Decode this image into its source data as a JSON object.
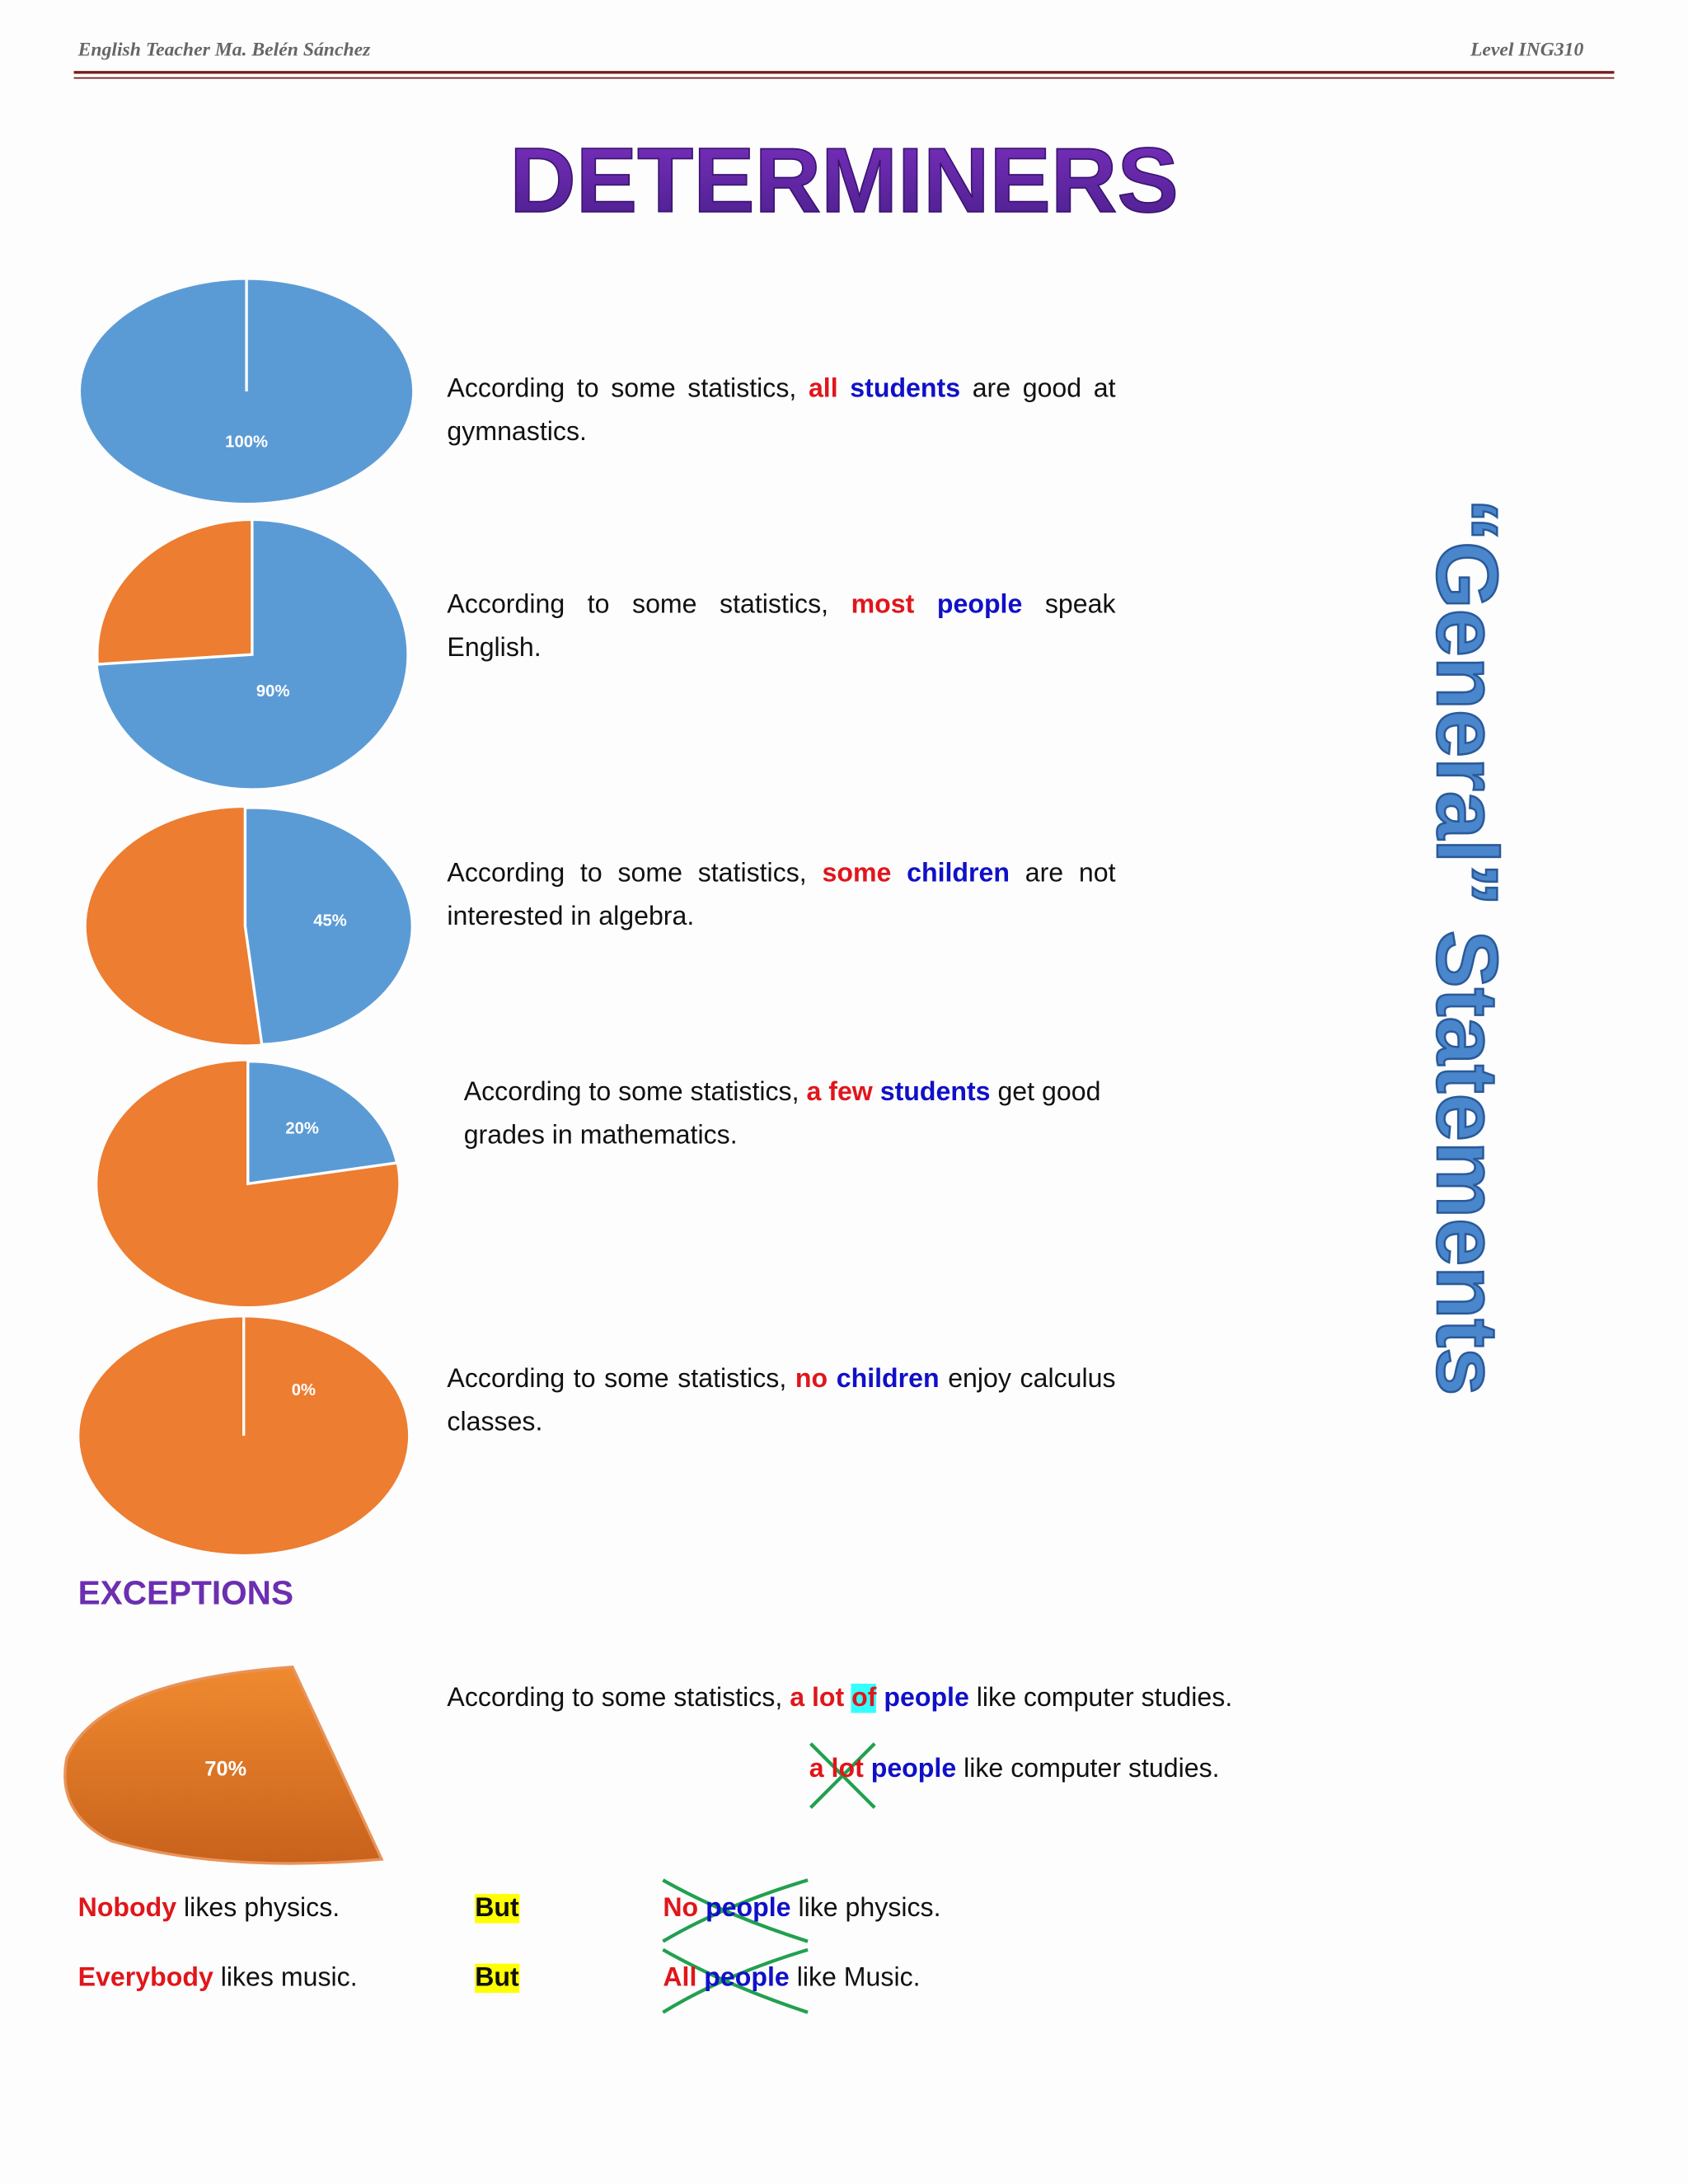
{
  "header": {
    "left": "English Teacher Ma. Belén Sánchez",
    "right": "Level ING310"
  },
  "title": "DETERMINERS",
  "side_title": "“General” Statements",
  "statements": [
    {
      "pie_label": "100%",
      "before": "According to some statistics, ",
      "determiner": "all",
      "noun": "students",
      "after": " are good at gymnastics."
    },
    {
      "pie_label": "90%",
      "before": "According to some statistics, ",
      "determiner": "most",
      "noun": "people",
      "after": " speak English."
    },
    {
      "pie_label": "45%",
      "before": "According to some statistics, ",
      "determiner": "some",
      "noun": "children",
      "after": " are not interested in algebra."
    },
    {
      "pie_label": "20%",
      "before": "According to some statistics, ",
      "determiner": "a few",
      "noun": "students",
      "after": " get good grades in mathematics."
    },
    {
      "pie_label": "0%",
      "before": "According to some statistics, ",
      "determiner": "no",
      "noun": "children",
      "after": " enjoy calculus classes."
    }
  ],
  "exceptions": {
    "heading": "EXCEPTIONS",
    "pie_label": "70%",
    "line1": {
      "before": "According to some statistics, ",
      "determiner": "a lot",
      "of": "of",
      "noun": "people",
      "after": " like computer studies."
    },
    "line2": {
      "determiner": "a lot",
      "noun": "people",
      "after": " like computer studies."
    },
    "rows": [
      {
        "pronoun": "Nobody",
        "rest": " likes physics.",
        "but": "But",
        "wrong_determiner": "No",
        "wrong_noun": "people",
        "wrong_rest": " like physics."
      },
      {
        "pronoun": "Everybody",
        "rest": " likes music.",
        "but": "But",
        "wrong_determiner": "All",
        "wrong_noun": "people",
        "wrong_rest": " like Music."
      }
    ]
  }
}
